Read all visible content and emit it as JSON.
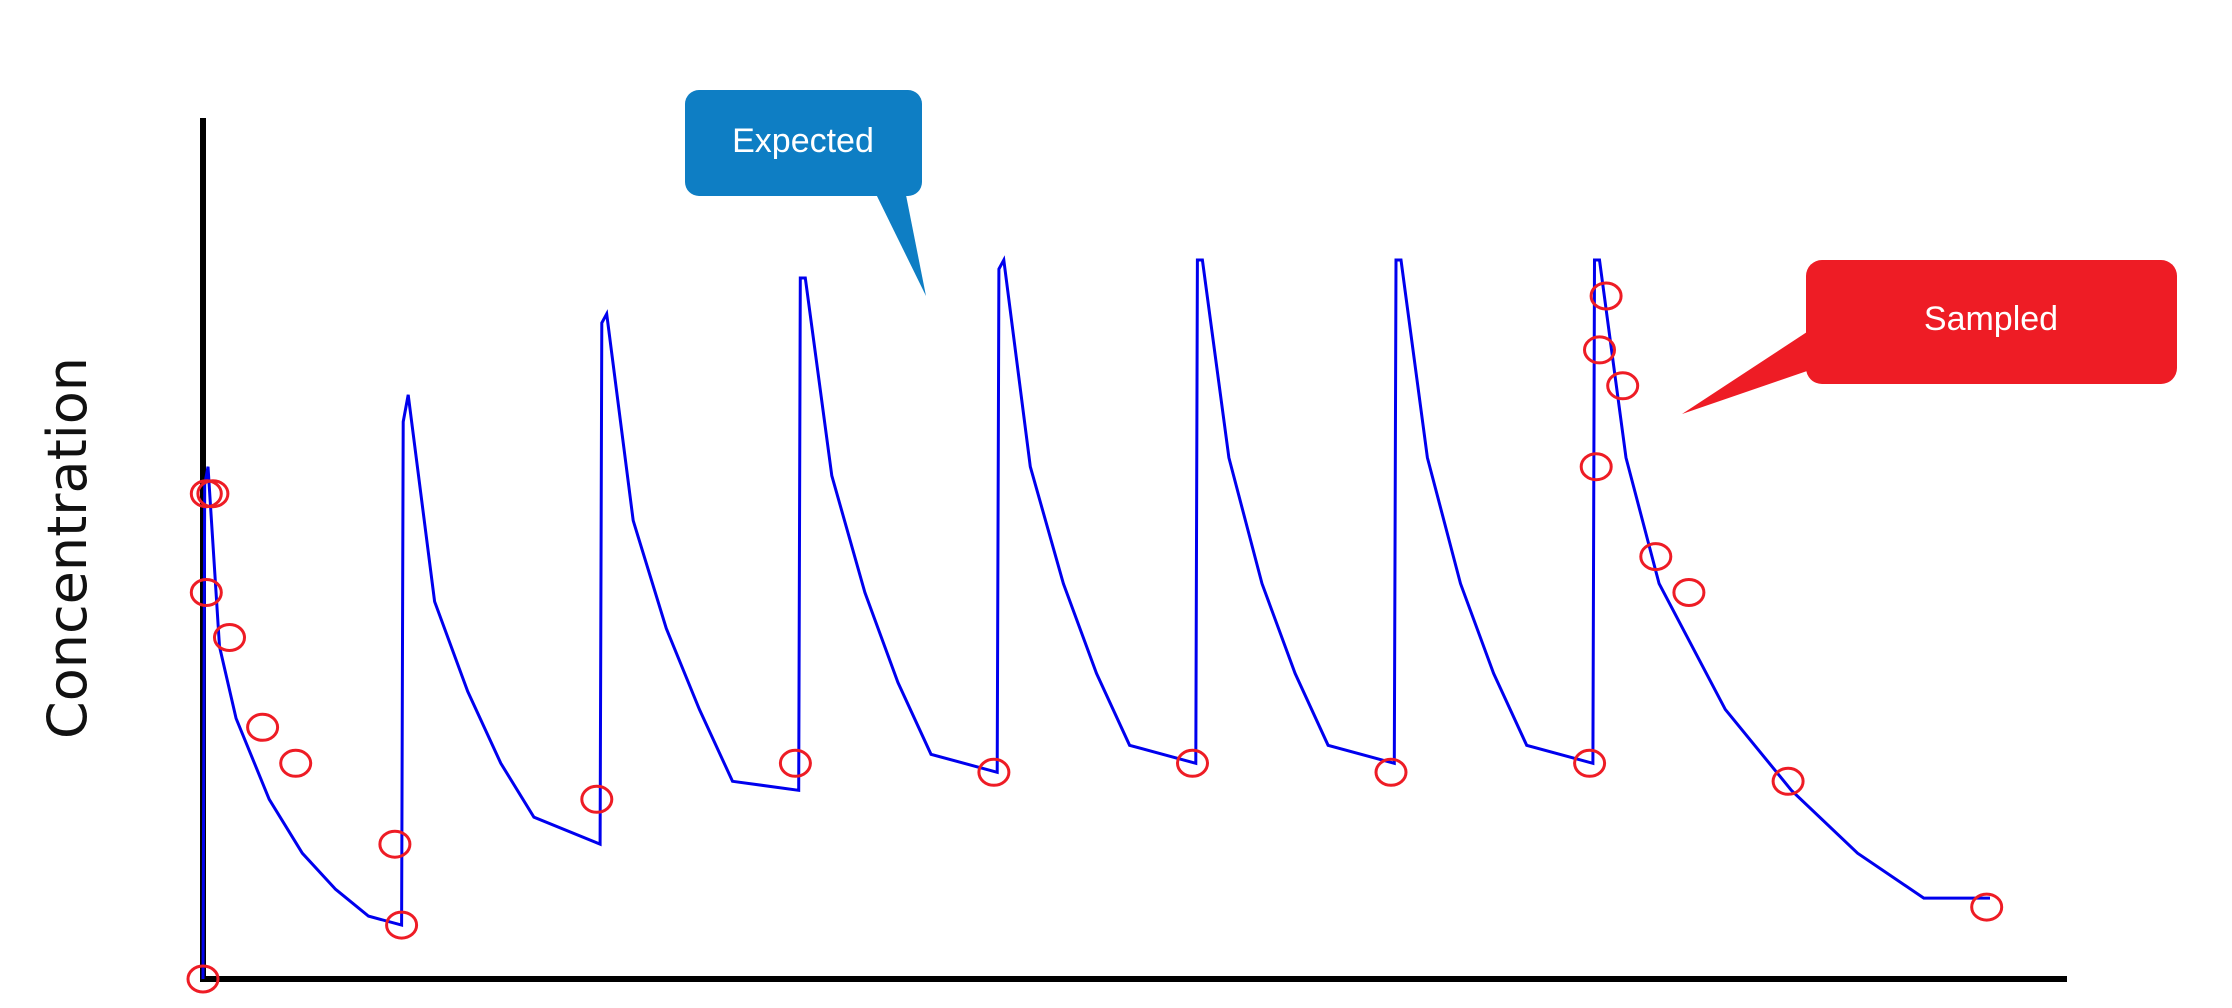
{
  "chart_data": {
    "type": "line",
    "ylabel": "Concentration",
    "xlabel": "",
    "title": "",
    "axes": {
      "x_ticks": false,
      "y_ticks": false,
      "grid": false
    },
    "colors": {
      "expected": "#0000ee",
      "sampled": "#ee1c25",
      "expected_callout": "#0e7ec4",
      "sampled_callout": "#ee1c25"
    },
    "annotations": [
      {
        "label": "Expected",
        "series": "expected"
      },
      {
        "label": "Sampled",
        "series": "sampled"
      }
    ],
    "series": [
      {
        "key": "expected",
        "values_note": "",
        "points": [
          [
            0.0,
            0.0
          ],
          [
            0.05,
            0.55
          ],
          [
            0.15,
            0.57
          ],
          [
            0.5,
            0.37
          ],
          [
            1.0,
            0.29
          ],
          [
            2.0,
            0.2
          ],
          [
            3.0,
            0.14
          ],
          [
            4.0,
            0.1
          ],
          [
            5.0,
            0.07
          ],
          [
            6.0,
            0.06
          ],
          [
            6.05,
            0.62
          ],
          [
            6.2,
            0.65
          ],
          [
            7.0,
            0.42
          ],
          [
            8.0,
            0.32
          ],
          [
            9.0,
            0.24
          ],
          [
            10.0,
            0.18
          ],
          [
            12.0,
            0.15
          ],
          [
            12.05,
            0.73
          ],
          [
            12.2,
            0.74
          ],
          [
            13.0,
            0.51
          ],
          [
            14.0,
            0.39
          ],
          [
            15.0,
            0.3
          ],
          [
            16.0,
            0.22
          ],
          [
            18.0,
            0.21
          ],
          [
            18.05,
            0.78
          ],
          [
            18.2,
            0.78
          ],
          [
            19.0,
            0.56
          ],
          [
            20.0,
            0.43
          ],
          [
            21.0,
            0.33
          ],
          [
            22.0,
            0.25
          ],
          [
            24.0,
            0.23
          ],
          [
            24.05,
            0.79
          ],
          [
            24.2,
            0.8
          ],
          [
            25.0,
            0.57
          ],
          [
            26.0,
            0.44
          ],
          [
            27.0,
            0.34
          ],
          [
            28.0,
            0.26
          ],
          [
            30.0,
            0.24
          ],
          [
            30.05,
            0.8
          ],
          [
            30.2,
            0.8
          ],
          [
            31.0,
            0.58
          ],
          [
            32.0,
            0.44
          ],
          [
            33.0,
            0.34
          ],
          [
            34.0,
            0.26
          ],
          [
            36.0,
            0.24
          ],
          [
            36.05,
            0.8
          ],
          [
            36.2,
            0.8
          ],
          [
            37.0,
            0.58
          ],
          [
            38.0,
            0.44
          ],
          [
            39.0,
            0.34
          ],
          [
            40.0,
            0.26
          ],
          [
            42.0,
            0.24
          ],
          [
            42.05,
            0.8
          ],
          [
            42.2,
            0.8
          ],
          [
            43.0,
            0.58
          ],
          [
            44.0,
            0.44
          ],
          [
            46.0,
            0.3
          ],
          [
            48.0,
            0.21
          ],
          [
            50.0,
            0.14
          ],
          [
            52.0,
            0.09
          ],
          [
            54.0,
            0.09
          ]
        ]
      },
      {
        "key": "sampled",
        "points": [
          [
            0.0,
            0.0
          ],
          [
            0.1,
            0.54
          ],
          [
            0.3,
            0.54
          ],
          [
            0.1,
            0.43
          ],
          [
            0.8,
            0.38
          ],
          [
            1.8,
            0.28
          ],
          [
            2.8,
            0.24
          ],
          [
            5.8,
            0.15
          ],
          [
            6.0,
            0.06
          ],
          [
            11.9,
            0.2
          ],
          [
            17.9,
            0.24
          ],
          [
            23.9,
            0.23
          ],
          [
            29.9,
            0.24
          ],
          [
            35.9,
            0.23
          ],
          [
            41.9,
            0.24
          ],
          [
            42.4,
            0.76
          ],
          [
            42.2,
            0.7
          ],
          [
            42.9,
            0.66
          ],
          [
            42.1,
            0.57
          ],
          [
            43.9,
            0.47
          ],
          [
            44.9,
            0.43
          ],
          [
            47.9,
            0.22
          ],
          [
            53.9,
            0.08
          ]
        ]
      }
    ]
  }
}
